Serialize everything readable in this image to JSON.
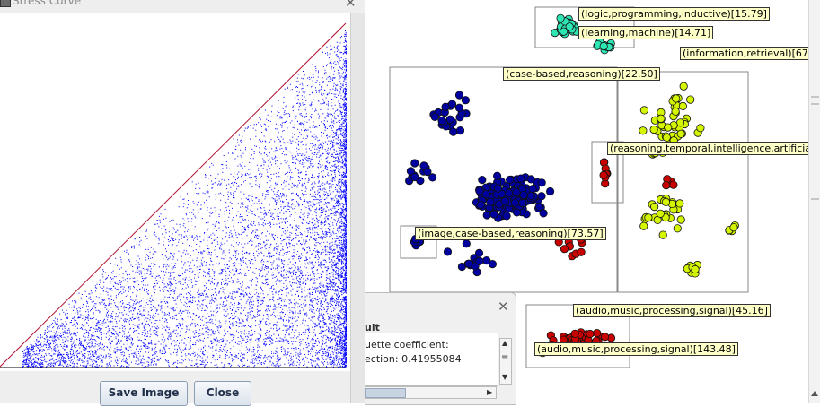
{
  "stress_window": {
    "title": "Stress Curve",
    "save_button": "Save Image",
    "close_button": "Close"
  },
  "result_window": {
    "heading": "ult",
    "line1": "uette coefficient:",
    "line2": "ection: 0.41955084"
  },
  "cluster_labels": [
    "(logic,programming,inductive)[15.79]",
    "(learning,machine)[14.71]",
    "(information,retrieval)[67.5",
    "(case-based,reasoning)[22.50]",
    "(reasoning,temporal,intelligence,artificial",
    "(image,case-based,reasoning)[73.57]",
    "(audio,music,processing,signal)[45.16]",
    "(audio,music,processing,signal)[143.48]"
  ],
  "colors": {
    "stress_points": "#0000ff",
    "diagonal": "#b01030",
    "cluster_blue": "#00009f",
    "cluster_yellowgreen": "#d4f400",
    "cluster_red": "#c80000",
    "cluster_teal": "#2ee6b4",
    "label_bg": "#ffffc8"
  }
}
